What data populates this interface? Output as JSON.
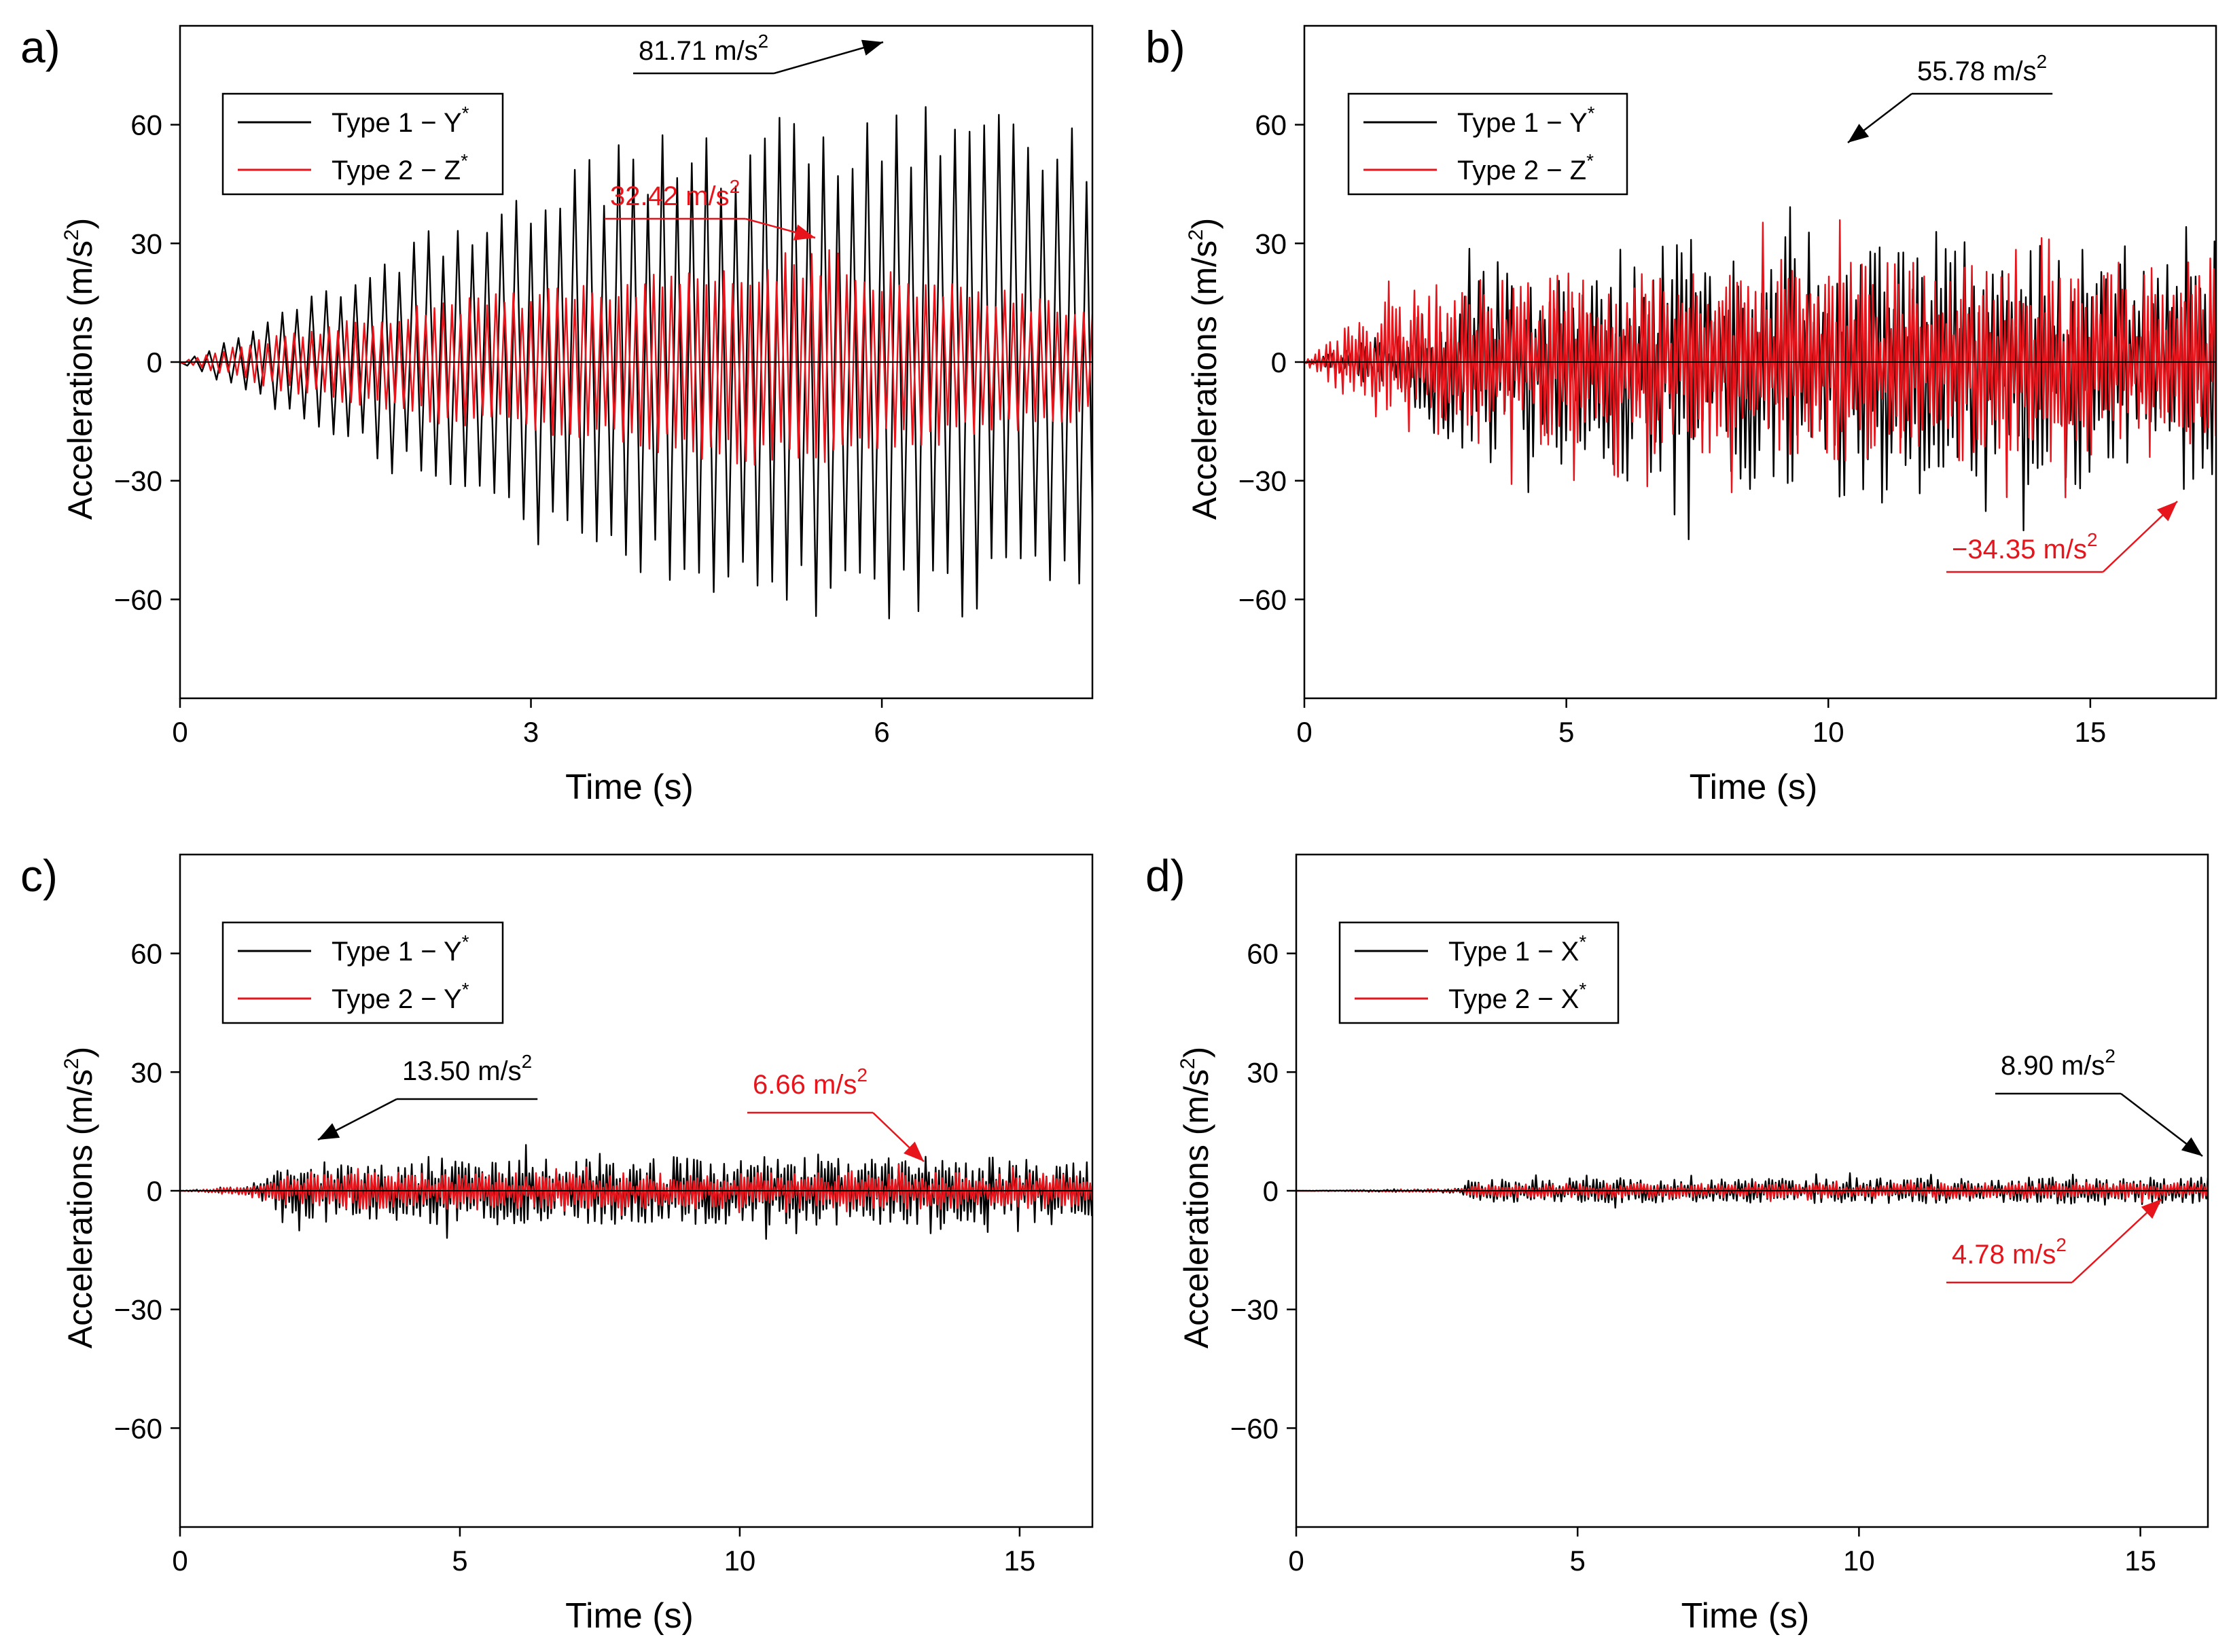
{
  "colors": {
    "series1": "#000000",
    "series2": "#e8141b",
    "axis": "#000000",
    "background": "#ffffff"
  },
  "chart_data": [
    {
      "panel_label": "a)",
      "type": "line",
      "xlabel": "Time (s)",
      "ylabel_main": "Accelerations (m/s",
      "ylabel_sup": "2",
      "ylabel_close": ")",
      "xlim": [
        0,
        7.8
      ],
      "ylim": [
        -85,
        85
      ],
      "xticks": [
        0,
        3,
        6
      ],
      "yticks": [
        -60,
        -30,
        0,
        30,
        60
      ],
      "legend": "top-left",
      "grid": false,
      "series": [
        {
          "name": "Type 1 − Y*",
          "name_main": "Type 1  − Y",
          "name_sup": "*",
          "color": "#000000",
          "kind": "sine",
          "period": 0.125,
          "envelope": [
            [
              0,
              0
            ],
            [
              1,
              14
            ],
            [
              2,
              30
            ],
            [
              3,
              45
            ],
            [
              4,
              55
            ],
            [
              5,
              60
            ],
            [
              6,
              63
            ],
            [
              7,
              62
            ],
            [
              7.8,
              60
            ]
          ]
        },
        {
          "name": "Type 2 − Z*",
          "name_main": "Type 2  − Z",
          "name_sup": "*",
          "color": "#e8141b",
          "kind": "sine",
          "period": 0.075,
          "envelope": [
            [
              0,
              0
            ],
            [
              1,
              8
            ],
            [
              2,
              14
            ],
            [
              3,
              18
            ],
            [
              4,
              22
            ],
            [
              5,
              26
            ],
            [
              5.5,
              28
            ],
            [
              6,
              22
            ],
            [
              7,
              18
            ],
            [
              7.8,
              14
            ]
          ]
        }
      ],
      "annotations": [
        {
          "text_main": "81.71 m/s",
          "text_sup": "2",
          "color": "#000000",
          "x": 6.0,
          "y": 81.71
        },
        {
          "text_main": "32.42 m/s",
          "text_sup": "2",
          "color": "#e8141b",
          "x": 5.45,
          "y": 32.42
        }
      ]
    },
    {
      "panel_label": "b)",
      "type": "line",
      "xlabel": "Time (s)",
      "ylabel_main": "Accelerations (m/s",
      "ylabel_sup": "2",
      "ylabel_close": ")",
      "xlim": [
        0,
        17.4
      ],
      "ylim": [
        -85,
        85
      ],
      "xticks": [
        0,
        5,
        10,
        15
      ],
      "yticks": [
        -60,
        -30,
        0,
        30,
        60
      ],
      "legend": "top-left",
      "grid": false,
      "series": [
        {
          "name": "Type 1 − Y*",
          "name_main": "Type 1  − Y",
          "name_sup": "*",
          "color": "#000000",
          "kind": "noise",
          "period": 0.09,
          "envelope": [
            [
              0,
              0
            ],
            [
              2,
              8
            ],
            [
              2.5,
              18
            ],
            [
              4,
              24
            ],
            [
              6,
              26
            ],
            [
              10,
              30
            ],
            [
              14,
              28
            ],
            [
              17.4,
              26
            ]
          ]
        },
        {
          "name": "Type 2 − Z*",
          "name_main": "Type 2  − Z",
          "name_sup": "*",
          "color": "#e8141b",
          "kind": "noise",
          "period": 0.07,
          "envelope": [
            [
              0,
              0
            ],
            [
              1,
              10
            ],
            [
              2,
              16
            ],
            [
              3,
              18
            ],
            [
              6,
              20
            ],
            [
              10,
              22
            ],
            [
              14,
              22
            ],
            [
              17.4,
              22
            ]
          ]
        }
      ],
      "annotations": [
        {
          "text_main": "55.78 m/s",
          "text_sup": "2",
          "color": "#000000",
          "x": 10.3,
          "y": 55.78
        },
        {
          "text_main": "−34.35 m/s",
          "text_sup": "2",
          "color": "#e8141b",
          "x": 16.6,
          "y": -34.35
        }
      ]
    },
    {
      "panel_label": "c)",
      "type": "line",
      "xlabel": "Time (s)",
      "ylabel_main": "Accelerations (m/s",
      "ylabel_sup": "2",
      "ylabel_close": ")",
      "xlim": [
        0,
        16.3
      ],
      "ylim": [
        -85,
        85
      ],
      "xticks": [
        0,
        5,
        10,
        15
      ],
      "yticks": [
        -60,
        -30,
        0,
        30,
        60
      ],
      "legend": "top-left",
      "grid": false,
      "series": [
        {
          "name": "Type 1 − Y*",
          "name_main": "Type 1  − Y",
          "name_sup": "*",
          "color": "#000000",
          "kind": "noise",
          "period": 0.06,
          "envelope": [
            [
              0,
              0
            ],
            [
              1.2,
              1
            ],
            [
              2,
              6
            ],
            [
              3,
              7.5
            ],
            [
              16.3,
              7.5
            ]
          ]
        },
        {
          "name": "Type 2 − Y*",
          "name_main": "Type 2  − Y",
          "name_sup": "*",
          "color": "#e8141b",
          "kind": "noise",
          "period": 0.06,
          "envelope": [
            [
              0,
              0
            ],
            [
              1.2,
              1
            ],
            [
              2,
              3.5
            ],
            [
              3,
              4
            ],
            [
              16.3,
              4
            ]
          ]
        }
      ],
      "annotations": [
        {
          "text_main": "13.50 m/s",
          "text_sup": "2",
          "color": "#000000",
          "x": 2.6,
          "y": 13.5
        },
        {
          "text_main": "6.66 m/s",
          "text_sup": "2",
          "color": "#e8141b",
          "x": 13.3,
          "y": 6.66
        }
      ]
    },
    {
      "panel_label": "d)",
      "type": "line",
      "xlabel": "Time (s)",
      "ylabel_main": "Accelerations (m/s",
      "ylabel_sup": "2",
      "ylabel_close": ")",
      "xlim": [
        0,
        16.2
      ],
      "ylim": [
        -85,
        85
      ],
      "xticks": [
        0,
        5,
        10,
        15
      ],
      "yticks": [
        -60,
        -30,
        0,
        30,
        60
      ],
      "legend": "top-left",
      "grid": false,
      "series": [
        {
          "name": "Type 1 − X*",
          "name_main": "Type 1  − X",
          "name_sup": "*",
          "color": "#000000",
          "kind": "noise",
          "period": 0.06,
          "envelope": [
            [
              0,
              0
            ],
            [
              2.9,
              0.5
            ],
            [
              3.2,
              2.5
            ],
            [
              16.2,
              3
            ]
          ]
        },
        {
          "name": "Type 2 − X*",
          "name_main": "Type 2  − X",
          "name_sup": "*",
          "color": "#e8141b",
          "kind": "noise",
          "period": 0.06,
          "envelope": [
            [
              0,
              0
            ],
            [
              2.9,
              0.4
            ],
            [
              3.2,
              1.6
            ],
            [
              16.2,
              1.8
            ]
          ]
        }
      ],
      "annotations": [
        {
          "text_main": "8.90 m/s",
          "text_sup": "2",
          "color": "#000000",
          "x": 16.0,
          "y": 8.9
        },
        {
          "text_main": "4.78 m/s",
          "text_sup": "2",
          "color": "#e8141b",
          "x": 15.7,
          "y": 4.78
        }
      ]
    }
  ]
}
